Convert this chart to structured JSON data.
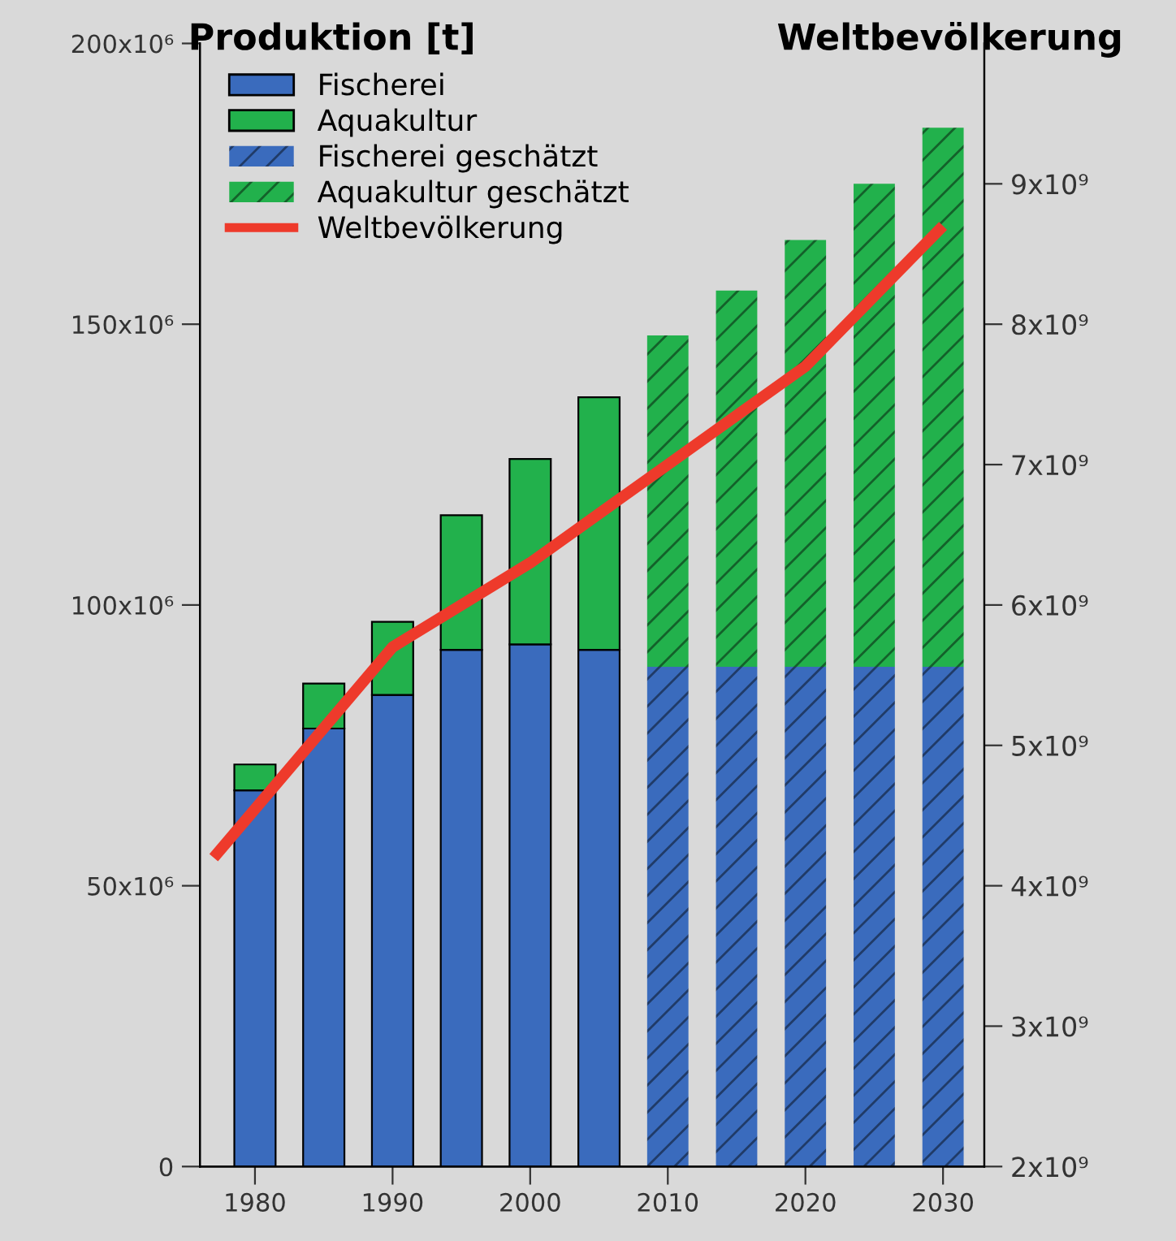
{
  "chart_data": {
    "type": "bar",
    "stacked": true,
    "ylabel": "Produktion [t]",
    "y2label": "Weltbevölkerung",
    "x": [
      1980,
      1985,
      1990,
      1995,
      2000,
      2005,
      2010,
      2015,
      2020,
      2025,
      2030
    ],
    "xlim": [
      1976,
      2033
    ],
    "xticks": [
      1980,
      1990,
      2000,
      2010,
      2020,
      2030
    ],
    "ylim": [
      0,
      200000000.0
    ],
    "yticks": [
      {
        "value": 0,
        "label": "0"
      },
      {
        "value": 50000000.0,
        "label": "50x10⁶"
      },
      {
        "value": 100000000.0,
        "label": "100x10⁶"
      },
      {
        "value": 150000000.0,
        "label": "150x10⁶"
      },
      {
        "value": 200000000.0,
        "label": "200x10⁶"
      }
    ],
    "y2lim": [
      2000000000.0,
      10000000000.0
    ],
    "y2ticks": [
      {
        "value": 2000000000.0,
        "label": "2x10⁹"
      },
      {
        "value": 3000000000.0,
        "label": "3x10⁹"
      },
      {
        "value": 4000000000.0,
        "label": "4x10⁹"
      },
      {
        "value": 5000000000.0,
        "label": "5x10⁹"
      },
      {
        "value": 6000000000.0,
        "label": "6x10⁹"
      },
      {
        "value": 7000000000.0,
        "label": "7x10⁹"
      },
      {
        "value": 8000000000.0,
        "label": "8x10⁹"
      },
      {
        "value": 9000000000.0,
        "label": "9x10⁹"
      }
    ],
    "legend": "top left",
    "grid": false,
    "series": [
      {
        "name": "Fischerei",
        "color": "#3a6bbd",
        "values": [
          67000000.0,
          78000000.0,
          84000000.0,
          92000000.0,
          93000000.0,
          92000000.0,
          null,
          null,
          null,
          null,
          null
        ]
      },
      {
        "name": "Aquakultur",
        "color": "#22b14c",
        "values": [
          4600000.0,
          8000000.0,
          13000000.0,
          24000000.0,
          33000000.0,
          45000000.0,
          null,
          null,
          null,
          null,
          null
        ]
      },
      {
        "name": "Fischerei geschätzt",
        "color": "#3a6bbd",
        "values": [
          null,
          null,
          null,
          null,
          null,
          null,
          89000000.0,
          89000000.0,
          89000000.0,
          89000000.0,
          89000000.0
        ]
      },
      {
        "name": "Aquakultur geschätzt",
        "color": "#22b14c",
        "values": [
          null,
          null,
          null,
          null,
          null,
          null,
          59000000.0,
          67000000.0,
          76000000.0,
          86000000.0,
          96000000.0
        ]
      },
      {
        "name": "Weltbevölkerung",
        "type": "line",
        "axis": "y2",
        "color": "#ee3a2b",
        "x": [
          1977,
          1990,
          2000,
          2010,
          2020,
          2030
        ],
        "values": [
          4200000000.0,
          5700000000.0,
          6300000000.0,
          7000000000.0,
          7700000000.0,
          8700000000.0
        ]
      }
    ]
  }
}
